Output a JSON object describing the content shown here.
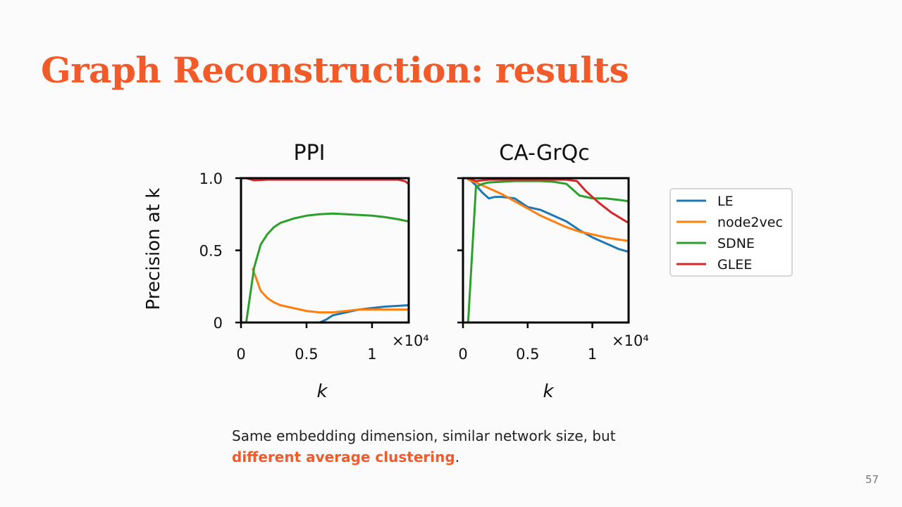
{
  "slide": {
    "title": "Graph Reconstruction: results",
    "caption_plain": "Same embedding dimension, similar network size, but",
    "caption_highlight": "different average clustering",
    "caption_end": ".",
    "page_number": "57"
  },
  "chart_data": [
    {
      "type": "line",
      "title": "PPI",
      "xlabel": "k",
      "ylabel": "Precision at k",
      "xlim": [
        0,
        12800
      ],
      "ylim": [
        0,
        1.0
      ],
      "xticks": [
        0,
        5000,
        10000
      ],
      "xtick_labels": [
        "0",
        "0.5",
        "1"
      ],
      "yticks": [
        0,
        0.5,
        1.0
      ],
      "ytick_labels": [
        "0",
        "0.5",
        "1.0"
      ],
      "x_multiplier_label": "×10⁴",
      "grid": false,
      "series": [
        {
          "name": "LE",
          "color": "#1f77b4",
          "x": [
            400,
            1000,
            2000,
            3000,
            4000,
            5000,
            6000,
            6500,
            7000,
            8000,
            9000,
            10000,
            11000,
            12000,
            12800
          ],
          "y": [
            0.0,
            0.0,
            0.0,
            0.0,
            0.0,
            0.0,
            0.0,
            0.02,
            0.05,
            0.07,
            0.09,
            0.1,
            0.11,
            0.115,
            0.12
          ]
        },
        {
          "name": "node2vec",
          "color": "#ff7f0e",
          "x": [
            900,
            1500,
            2000,
            2500,
            3000,
            4000,
            5000,
            6000,
            7000,
            8000,
            9000,
            10000,
            11000,
            12000,
            12800
          ],
          "y": [
            0.37,
            0.22,
            0.17,
            0.14,
            0.12,
            0.1,
            0.08,
            0.07,
            0.07,
            0.08,
            0.09,
            0.09,
            0.09,
            0.09,
            0.09
          ]
        },
        {
          "name": "SDNE",
          "color": "#2ca02c",
          "x": [
            400,
            1000,
            1500,
            2000,
            2500,
            3000,
            4000,
            5000,
            6000,
            7000,
            8000,
            9000,
            10000,
            11000,
            12000,
            12800
          ],
          "y": [
            0.0,
            0.38,
            0.54,
            0.61,
            0.66,
            0.69,
            0.72,
            0.74,
            0.75,
            0.755,
            0.75,
            0.745,
            0.74,
            0.73,
            0.715,
            0.7
          ]
        },
        {
          "name": "GLEE",
          "color": "#d62728",
          "x": [
            400,
            1000,
            2000,
            4000,
            6000,
            8000,
            10000,
            11000,
            12000,
            12500,
            12800
          ],
          "y": [
            1.0,
            0.985,
            0.99,
            0.99,
            0.99,
            0.99,
            0.99,
            0.99,
            0.99,
            0.98,
            0.96
          ]
        }
      ]
    },
    {
      "type": "line",
      "title": "CA-GrQc",
      "xlabel": "k",
      "ylabel": "",
      "xlim": [
        0,
        12800
      ],
      "ylim": [
        0,
        1.0
      ],
      "xticks": [
        0,
        5000,
        10000
      ],
      "xtick_labels": [
        "0",
        "0.5",
        "1"
      ],
      "yticks": [
        0,
        0.5,
        1.0
      ],
      "ytick_labels": [
        "",
        "",
        ""
      ],
      "x_multiplier_label": "×10⁴",
      "grid": false,
      "series": [
        {
          "name": "LE",
          "color": "#1f77b4",
          "x": [
            400,
            1000,
            1500,
            2000,
            2500,
            3000,
            4000,
            5000,
            6000,
            7000,
            8000,
            9000,
            10000,
            11000,
            12000,
            12800
          ],
          "y": [
            1.0,
            0.95,
            0.9,
            0.86,
            0.87,
            0.87,
            0.86,
            0.8,
            0.78,
            0.74,
            0.7,
            0.64,
            0.59,
            0.55,
            0.51,
            0.49
          ]
        },
        {
          "name": "node2vec",
          "color": "#ff7f0e",
          "x": [
            400,
            1000,
            2000,
            3000,
            4000,
            5000,
            6000,
            7000,
            8000,
            9000,
            10000,
            11000,
            12000,
            12800
          ],
          "y": [
            0.99,
            0.97,
            0.93,
            0.89,
            0.84,
            0.79,
            0.74,
            0.7,
            0.66,
            0.63,
            0.61,
            0.59,
            0.575,
            0.565
          ]
        },
        {
          "name": "SDNE",
          "color": "#2ca02c",
          "x": [
            400,
            1000,
            1500,
            2000,
            3000,
            4000,
            5000,
            6000,
            7000,
            8000,
            8500,
            9000,
            10000,
            11000,
            12000,
            12800
          ],
          "y": [
            0.0,
            0.94,
            0.96,
            0.97,
            0.975,
            0.98,
            0.98,
            0.98,
            0.975,
            0.96,
            0.92,
            0.88,
            0.86,
            0.86,
            0.85,
            0.84
          ]
        },
        {
          "name": "GLEE",
          "color": "#d62728",
          "x": [
            400,
            1000,
            2000,
            4000,
            6000,
            8000,
            8800,
            9500,
            10500,
            11500,
            12800
          ],
          "y": [
            1.0,
            0.98,
            0.99,
            0.99,
            0.99,
            0.99,
            0.98,
            0.91,
            0.83,
            0.76,
            0.69
          ]
        }
      ]
    }
  ],
  "legend": {
    "position": "right",
    "entries": [
      {
        "name": "LE",
        "color": "#1f77b4"
      },
      {
        "name": "node2vec",
        "color": "#ff7f0e"
      },
      {
        "name": "SDNE",
        "color": "#2ca02c"
      },
      {
        "name": "GLEE",
        "color": "#d62728"
      }
    ]
  }
}
